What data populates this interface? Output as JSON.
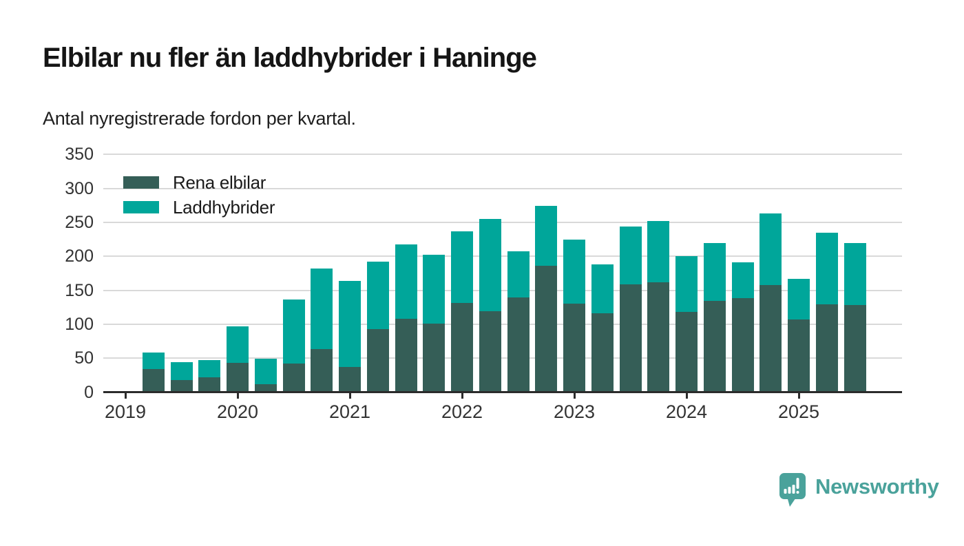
{
  "header": {
    "title": "Elbilar nu fler än laddhybrider i Haninge",
    "subtitle": "Antal nyregistrerade fordon per kvartal."
  },
  "branding": {
    "logo_text": "Newsworthy",
    "logo_icon": "newsworthy-speech-bubble-bar-chart-icon",
    "color": "#4AA29B"
  },
  "style": {
    "grid_color": "#D9D9D9",
    "axis_color": "#2B2B2B",
    "axis_label_color": "#333333",
    "background": "#FFFFFF"
  },
  "chart_data": {
    "type": "bar",
    "stacked": true,
    "title": "Elbilar nu fler än laddhybrider i Haninge",
    "subtitle": "Antal nyregistrerade fordon per kvartal.",
    "xlabel": "",
    "ylabel": "",
    "ylim": [
      0,
      350
    ],
    "yticks": [
      0,
      50,
      100,
      150,
      200,
      250,
      300,
      350
    ],
    "grid": "horizontal",
    "legend_position": "top-left-inside",
    "x_year_labels": [
      "2019",
      "2020",
      "2021",
      "2022",
      "2023",
      "2024",
      "2025"
    ],
    "x_quarter_offset": 1,
    "categories": [
      "2019 Q2",
      "2019 Q3",
      "2019 Q4",
      "2020 Q1",
      "2020 Q2",
      "2020 Q3",
      "2020 Q4",
      "2021 Q1",
      "2021 Q2",
      "2021 Q3",
      "2021 Q4",
      "2022 Q1",
      "2022 Q2",
      "2022 Q3",
      "2022 Q4",
      "2023 Q1",
      "2023 Q2",
      "2023 Q3",
      "2023 Q4",
      "2024 Q1",
      "2024 Q2",
      "2024 Q3",
      "2024 Q4",
      "2025 Q1",
      "2025 Q2",
      "2025 Q3"
    ],
    "series": [
      {
        "name": "Rena elbilar",
        "color": "#355E57",
        "values": [
          32,
          16,
          20,
          42,
          10,
          41,
          62,
          35,
          91,
          106,
          99,
          130,
          118,
          138,
          185,
          129,
          115,
          157,
          160,
          117,
          133,
          137,
          156,
          105,
          128,
          127
        ]
      },
      {
        "name": "Laddhybrider",
        "color": "#00A69A",
        "values": [
          24,
          26,
          25,
          54,
          38,
          94,
          119,
          127,
          99,
          110,
          101,
          105,
          136,
          68,
          88,
          94,
          72,
          85,
          90,
          82,
          85,
          53,
          105,
          60,
          105,
          91
        ]
      }
    ]
  }
}
